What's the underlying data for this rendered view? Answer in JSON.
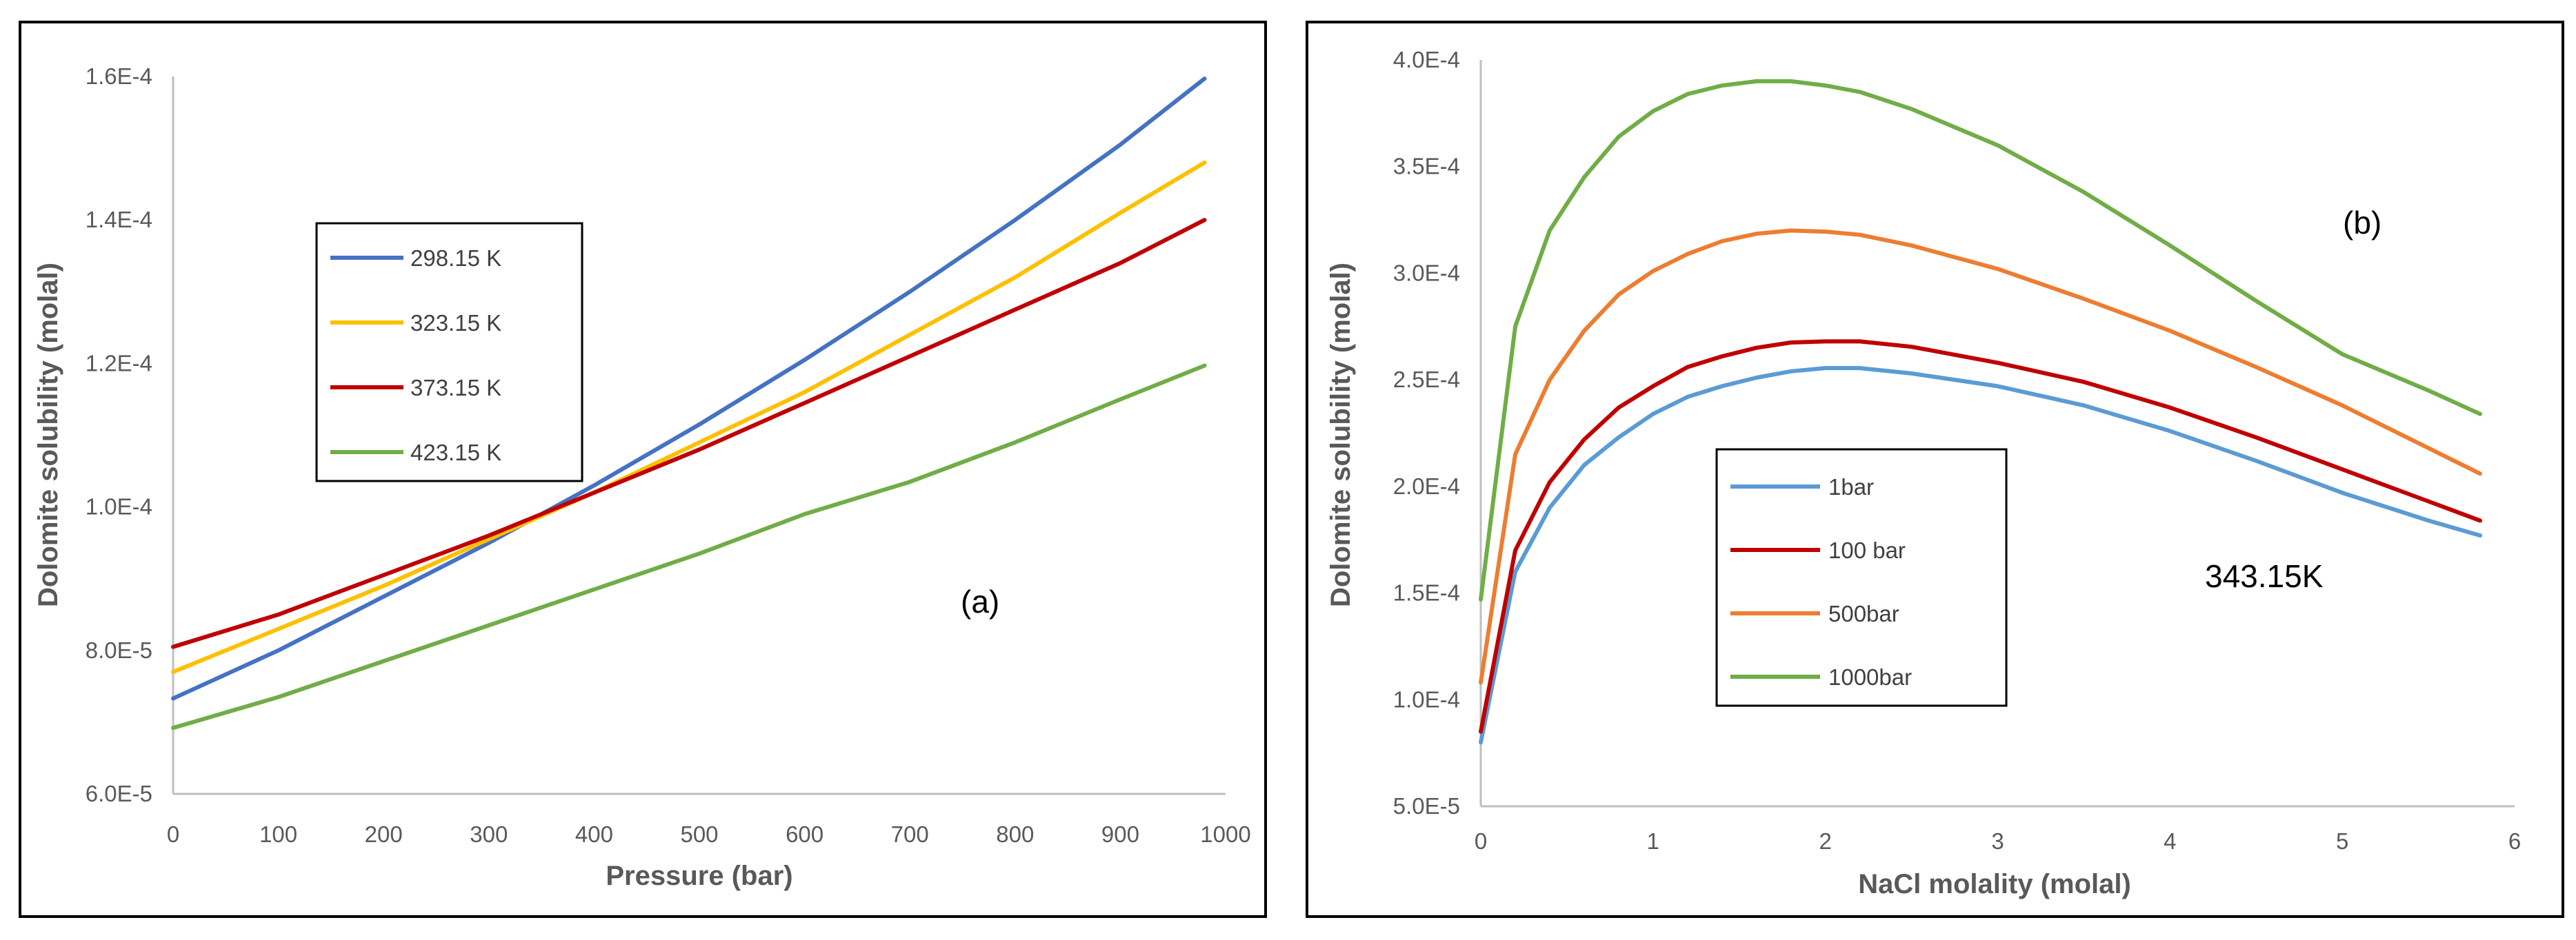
{
  "chart_data": [
    {
      "id": "a",
      "type": "line",
      "title": "",
      "xlabel": "Pressure (bar)",
      "ylabel": "Dolomite solubility (molal)",
      "xlim": [
        0,
        1000
      ],
      "ylim": [
        6e-05,
        0.00016
      ],
      "xticks": [
        0,
        100,
        200,
        300,
        400,
        500,
        600,
        700,
        800,
        900,
        1000
      ],
      "xtick_labels": [
        "0",
        "100",
        "200",
        "300",
        "400",
        "500",
        "600",
        "700",
        "800",
        "900",
        "1000"
      ],
      "yticks": [
        6e-05,
        8e-05,
        0.0001,
        0.00012,
        0.00014,
        0.00016
      ],
      "ytick_labels": [
        "6.0E-5",
        "8.0E-5",
        "1.0E-4",
        "1.2E-4",
        "1.4E-4",
        "1.6E-4"
      ],
      "grid": false,
      "legend_position": "upper-left",
      "annotation": "(a)",
      "series": [
        {
          "name": "298.15 K",
          "color": "#4472C4",
          "x": [
            0,
            100,
            200,
            300,
            400,
            500,
            600,
            700,
            800,
            900,
            980
          ],
          "y": [
            7.33e-05,
            8e-05,
            8.75e-05,
            9.5e-05,
            0.000103,
            0.0001115,
            0.0001205,
            0.00013,
            0.00014,
            0.0001505,
            0.0001597
          ]
        },
        {
          "name": "323.15 K",
          "color": "#FFC000",
          "x": [
            0,
            100,
            200,
            300,
            400,
            500,
            600,
            700,
            800,
            900,
            980
          ],
          "y": [
            7.7e-05,
            8.3e-05,
            8.9e-05,
            9.55e-05,
            0.000102,
            0.000109,
            0.000116,
            0.000124,
            0.000132,
            0.000141,
            0.000148
          ]
        },
        {
          "name": "373.15 K",
          "color": "#C00000",
          "x": [
            0,
            100,
            200,
            300,
            400,
            500,
            600,
            700,
            800,
            900,
            980
          ],
          "y": [
            8.05e-05,
            8.5e-05,
            9.05e-05,
            9.6e-05,
            0.000102,
            0.000108,
            0.0001145,
            0.000121,
            0.0001275,
            0.000134,
            0.00014
          ]
        },
        {
          "name": "423.15 K",
          "color": "#70AD47",
          "x": [
            0,
            100,
            200,
            300,
            400,
            500,
            600,
            700,
            800,
            900,
            980
          ],
          "y": [
            6.92e-05,
            7.35e-05,
            7.85e-05,
            8.35e-05,
            8.85e-05,
            9.35e-05,
            9.9e-05,
            0.0001035,
            0.000109,
            0.000115,
            0.0001197
          ]
        }
      ]
    },
    {
      "id": "b",
      "type": "line",
      "title": "",
      "xlabel": "NaCl molality (molal)",
      "ylabel": "Dolomite solubility (molal)",
      "xlim": [
        0,
        6
      ],
      "ylim": [
        5e-05,
        0.0004
      ],
      "xticks": [
        0,
        1,
        2,
        3,
        4,
        5,
        6
      ],
      "xtick_labels": [
        "0",
        "1",
        "2",
        "3",
        "4",
        "5",
        "6"
      ],
      "yticks": [
        5e-05,
        0.0001,
        0.00015,
        0.0002,
        0.00025,
        0.0003,
        0.00035,
        0.0004
      ],
      "ytick_labels": [
        "5.0E-5",
        "1.0E-4",
        "1.5E-4",
        "2.0E-4",
        "2.5E-4",
        "3.0E-4",
        "3.5E-4",
        "4.0E-4"
      ],
      "grid": false,
      "legend_position": "lower-left",
      "annotation": "(b)",
      "annotation2": "343.15K",
      "series": [
        {
          "name": "1bar",
          "color": "#5B9BD5",
          "x": [
            0,
            0.2,
            0.4,
            0.6,
            0.8,
            1.0,
            1.2,
            1.4,
            1.6,
            1.8,
            2.0,
            2.2,
            2.5,
            3.0,
            3.5,
            4.0,
            4.5,
            5.0,
            5.5,
            5.8
          ],
          "y": [
            8e-05,
            0.00016,
            0.00019,
            0.00021,
            0.000223,
            0.000234,
            0.000242,
            0.000247,
            0.000251,
            0.000254,
            0.0002555,
            0.0002555,
            0.000253,
            0.000247,
            0.000238,
            0.000226,
            0.000212,
            0.000197,
            0.000184,
            0.000177
          ]
        },
        {
          "name": "100 bar",
          "color": "#C00000",
          "x": [
            0,
            0.2,
            0.4,
            0.6,
            0.8,
            1.0,
            1.2,
            1.4,
            1.6,
            1.8,
            2.0,
            2.2,
            2.5,
            3.0,
            3.5,
            4.0,
            4.5,
            5.0,
            5.5,
            5.8
          ],
          "y": [
            8.5e-05,
            0.00017,
            0.000202,
            0.000222,
            0.000237,
            0.000247,
            0.000256,
            0.000261,
            0.000265,
            0.0002675,
            0.000268,
            0.000268,
            0.0002655,
            0.000258,
            0.000249,
            0.000237,
            0.000223,
            0.000208,
            0.000193,
            0.000184
          ]
        },
        {
          "name": "500bar",
          "color": "#ED7D31",
          "x": [
            0,
            0.2,
            0.4,
            0.6,
            0.8,
            1.0,
            1.2,
            1.4,
            1.6,
            1.8,
            2.0,
            2.2,
            2.5,
            3.0,
            3.5,
            4.0,
            4.5,
            5.0,
            5.5,
            5.8
          ],
          "y": [
            0.000108,
            0.000215,
            0.00025,
            0.000273,
            0.00029,
            0.000301,
            0.000309,
            0.000315,
            0.0003185,
            0.00032,
            0.0003195,
            0.000318,
            0.000313,
            0.000302,
            0.000288,
            0.000273,
            0.000256,
            0.000238,
            0.000218,
            0.000206
          ]
        },
        {
          "name": "1000bar",
          "color": "#70AD47",
          "x": [
            0,
            0.2,
            0.4,
            0.6,
            0.8,
            1.0,
            1.2,
            1.4,
            1.6,
            1.8,
            2.0,
            2.2,
            2.5,
            3.0,
            3.5,
            4.0,
            4.5,
            5.0,
            5.5,
            5.8
          ],
          "y": [
            0.000147,
            0.000275,
            0.00032,
            0.000345,
            0.000364,
            0.000376,
            0.000384,
            0.000388,
            0.00039,
            0.00039,
            0.000388,
            0.000385,
            0.000377,
            0.00036,
            0.000338,
            0.000313,
            0.000287,
            0.000262,
            0.000245,
            0.000234
          ]
        }
      ]
    }
  ]
}
